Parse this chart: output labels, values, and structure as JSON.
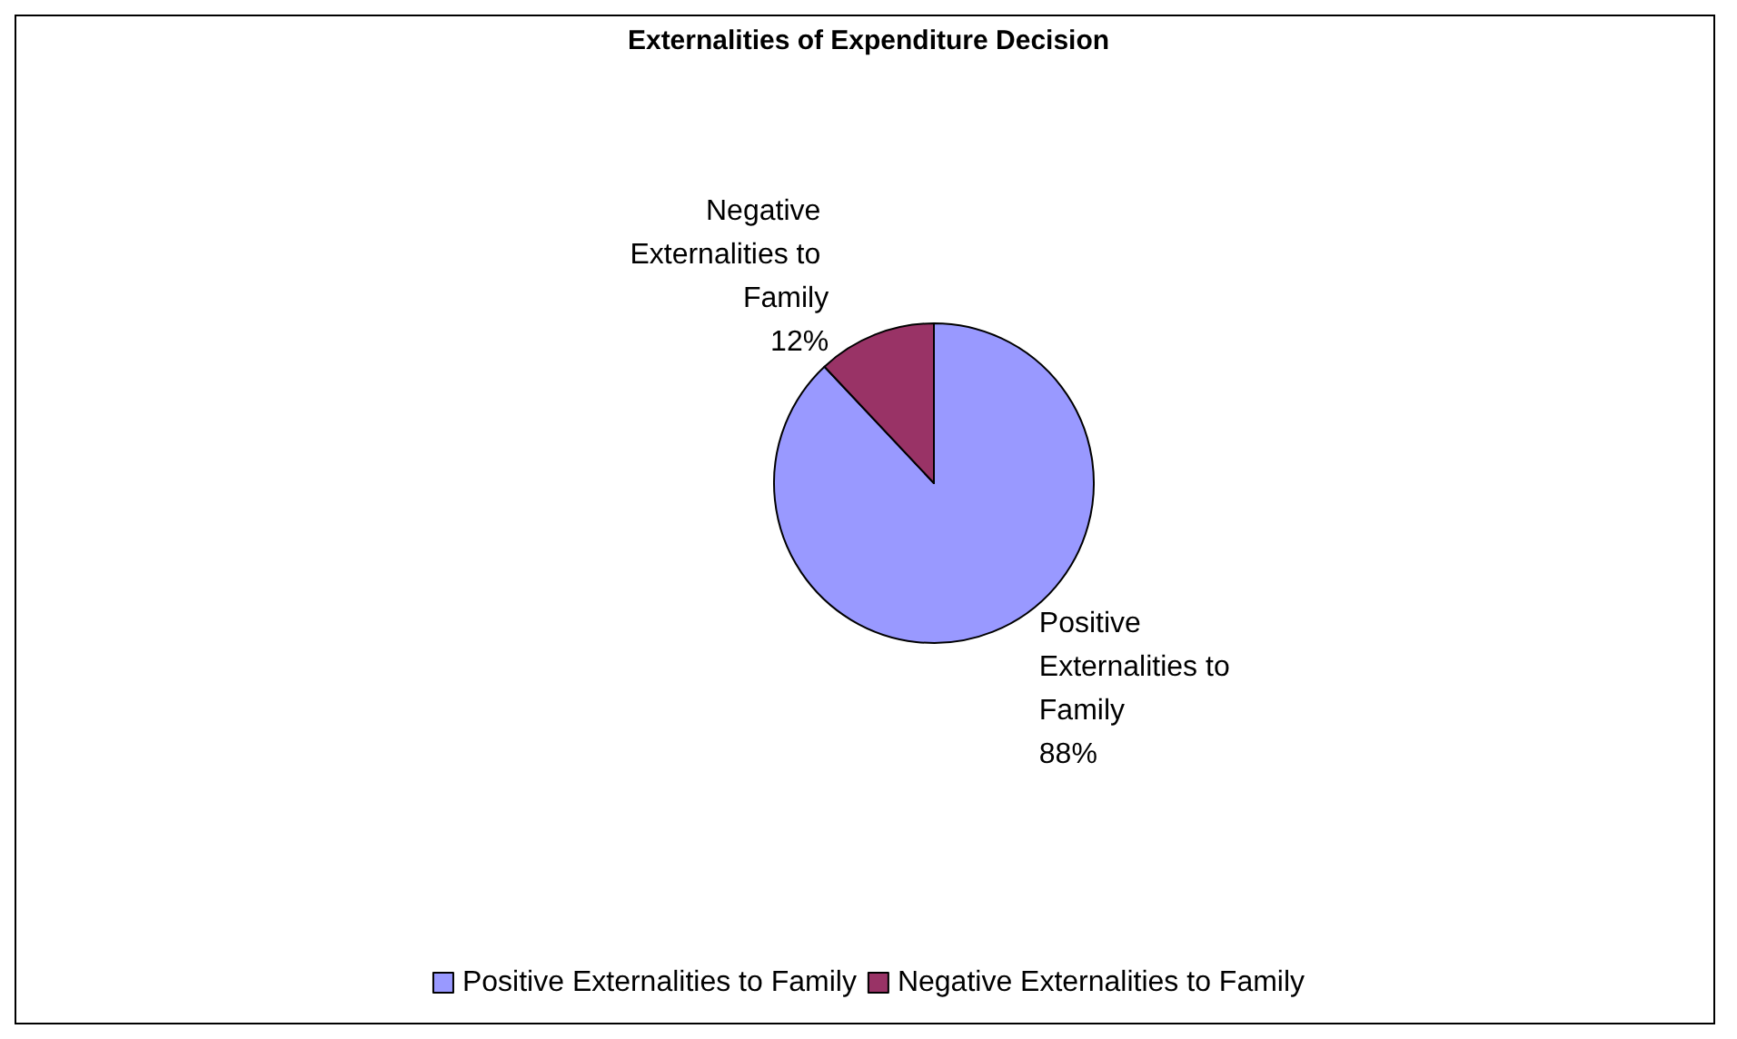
{
  "chart_data": {
    "type": "pie",
    "title": "Externalities of Expenditure Decision",
    "categories": [
      "Positive Externalities to Family",
      "Negative Externalities to Family"
    ],
    "values": [
      88,
      12
    ],
    "colors": [
      "#9999ff",
      "#993366"
    ],
    "value_labels": [
      "88%",
      "12%"
    ],
    "legend": "bottom"
  }
}
